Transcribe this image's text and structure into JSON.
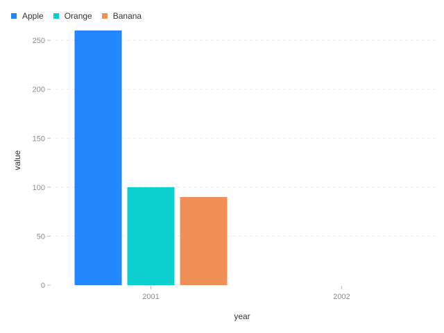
{
  "chart_data": {
    "type": "bar",
    "categories": [
      "2001",
      "2002"
    ],
    "series": [
      {
        "name": "Apple",
        "color": "#2388ff",
        "values": [
          260,
          null
        ]
      },
      {
        "name": "Orange",
        "color": "#0ccfcf",
        "values": [
          100,
          null
        ]
      },
      {
        "name": "Banana",
        "color": "#f09056",
        "values": [
          90,
          null
        ]
      }
    ],
    "xlabel": "year",
    "ylabel": "value",
    "ylim": [
      0,
      260
    ],
    "yticks": [
      0,
      50,
      100,
      150,
      200,
      250
    ],
    "grid": true,
    "legend_position": "top-left"
  }
}
